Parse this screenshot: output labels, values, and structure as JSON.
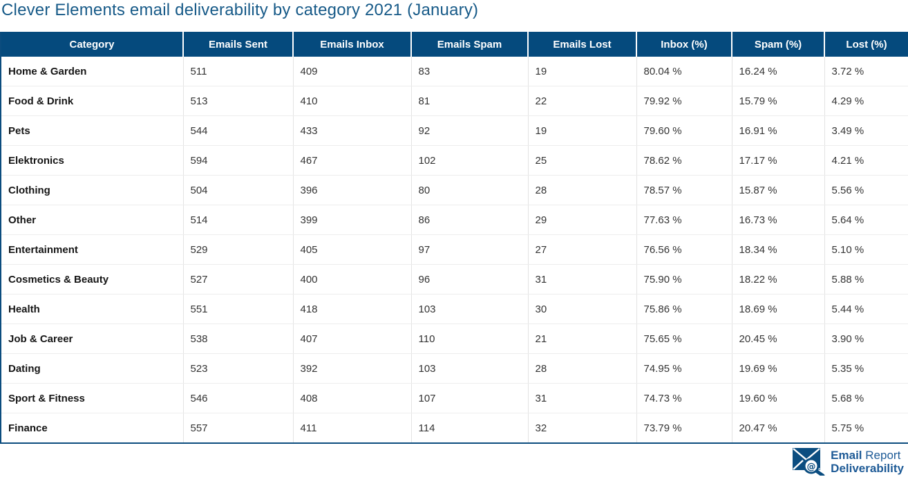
{
  "title": "Clever Elements email deliverability by category 2021 (January)",
  "chart_data": {
    "type": "table",
    "title": "Clever Elements email deliverability by category 2021 (January)",
    "columns": [
      "Category",
      "Emails Sent",
      "Emails Inbox",
      "Emails Spam",
      "Emails Lost",
      "Inbox (%)",
      "Spam (%)",
      "Lost (%)"
    ],
    "rows": [
      [
        "Home & Garden",
        "511",
        "409",
        "83",
        "19",
        "80.04 %",
        "16.24 %",
        "3.72 %"
      ],
      [
        "Food & Drink",
        "513",
        "410",
        "81",
        "22",
        "79.92 %",
        "15.79 %",
        "4.29 %"
      ],
      [
        "Pets",
        "544",
        "433",
        "92",
        "19",
        "79.60 %",
        "16.91 %",
        "3.49 %"
      ],
      [
        "Elektronics",
        "594",
        "467",
        "102",
        "25",
        "78.62 %",
        "17.17 %",
        "4.21 %"
      ],
      [
        "Clothing",
        "504",
        "396",
        "80",
        "28",
        "78.57 %",
        "15.87 %",
        "5.56 %"
      ],
      [
        "Other",
        "514",
        "399",
        "86",
        "29",
        "77.63 %",
        "16.73 %",
        "5.64 %"
      ],
      [
        "Entertainment",
        "529",
        "405",
        "97",
        "27",
        "76.56 %",
        "18.34 %",
        "5.10 %"
      ],
      [
        "Cosmetics & Beauty",
        "527",
        "400",
        "96",
        "31",
        "75.90 %",
        "18.22 %",
        "5.88 %"
      ],
      [
        "Health",
        "551",
        "418",
        "103",
        "30",
        "75.86 %",
        "18.69 %",
        "5.44 %"
      ],
      [
        "Job & Career",
        "538",
        "407",
        "110",
        "21",
        "75.65 %",
        "20.45 %",
        "3.90 %"
      ],
      [
        "Dating",
        "523",
        "392",
        "103",
        "28",
        "74.95 %",
        "19.69 %",
        "5.35 %"
      ],
      [
        "Sport & Fitness",
        "546",
        "408",
        "107",
        "31",
        "74.73 %",
        "19.60 %",
        "5.68 %"
      ],
      [
        "Finance",
        "557",
        "411",
        "114",
        "32",
        "73.79 %",
        "20.47 %",
        "5.75 %"
      ]
    ]
  },
  "logo": {
    "line1_bold": "Email",
    "line1_regular": "Report",
    "line2_bold": "Deliverability",
    "icon": "envelope-magnifier-at-icon"
  },
  "colors": {
    "title_blue": "#175a88",
    "header_bg": "#054a7d",
    "table_border": "#0b4c7e",
    "row_divider": "#ededed",
    "column_divider": "#e3e3e3",
    "logo_blue": "#1d5a96"
  }
}
